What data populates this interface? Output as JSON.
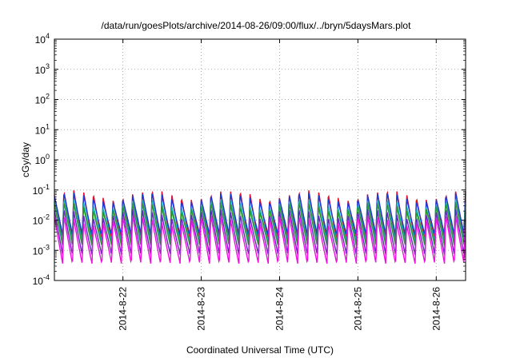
{
  "chart_data": {
    "type": "line",
    "title": "/data/run/goesPlots/archive/2014-08-26/09:00/flux/../bryn/5daysMars.plot",
    "xlabel": "Coordinated Universal Time (UTC)",
    "ylabel": "cGy/day",
    "yscale": "log",
    "ylim": [
      0.0001,
      10000
    ],
    "xlim": [
      "2014-08-21 03:00",
      "2014-08-26 09:00"
    ],
    "grid": true,
    "legend": "none",
    "y_ticks": [
      {
        "base": "10",
        "exp": "-4"
      },
      {
        "base": "10",
        "exp": "-3"
      },
      {
        "base": "10",
        "exp": "-2"
      },
      {
        "base": "10",
        "exp": "-1"
      },
      {
        "base": "10",
        "exp": "0"
      },
      {
        "base": "10",
        "exp": "1"
      },
      {
        "base": "10",
        "exp": "2"
      },
      {
        "base": "10",
        "exp": "3"
      },
      {
        "base": "10",
        "exp": "4"
      }
    ],
    "x_ticks": [
      "2014-8-22",
      "2014-8-23",
      "2014-8-24",
      "2014-8-25",
      "2014-8-26"
    ],
    "cycle_period_hours": 3,
    "series": [
      {
        "color": "#e0102a",
        "peak": 0.075,
        "trough": 0.0022
      },
      {
        "color": "#1a3ad6",
        "peak": 0.062,
        "trough": 0.0032
      },
      {
        "color": "#17b3b0",
        "peak": 0.038,
        "trough": 0.0019
      },
      {
        "color": "#2a9a2a",
        "peak": 0.03,
        "trough": 0.0014
      },
      {
        "color": "#6a24c4",
        "peak": 0.018,
        "trough": 0.0007
      },
      {
        "color": "#ee10dc",
        "peak": 0.011,
        "trough": 0.00035
      }
    ]
  }
}
